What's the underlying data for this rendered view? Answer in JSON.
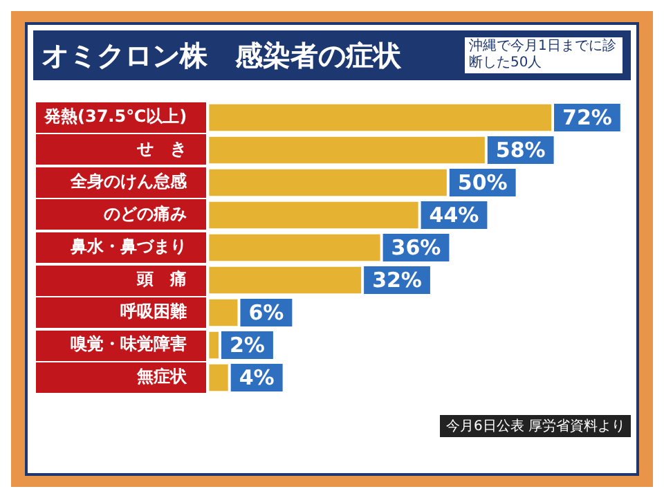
{
  "chart_data": {
    "type": "bar",
    "orientation": "horizontal",
    "title": "オミクロン株　感染者の症状",
    "subtitle": "沖縄で今月1日までに診断した50人",
    "categories": [
      "発熱(37.5℃以上)",
      "せ　き",
      "全身のけん怠感",
      "のどの痛み",
      "鼻水・鼻づまり",
      "頭　痛",
      "呼吸困難",
      "嗅覚・味覚障害",
      "無症状"
    ],
    "values": [
      72,
      58,
      50,
      44,
      36,
      32,
      6,
      2,
      4
    ],
    "value_labels": [
      "72%",
      "58%",
      "50%",
      "44%",
      "36%",
      "32%",
      "6%",
      "2%",
      "4%"
    ],
    "color": "#e6b232",
    "annotations": [
      "今月6日公表 厚労省資料より"
    ],
    "grid": false,
    "legend": false
  }
}
